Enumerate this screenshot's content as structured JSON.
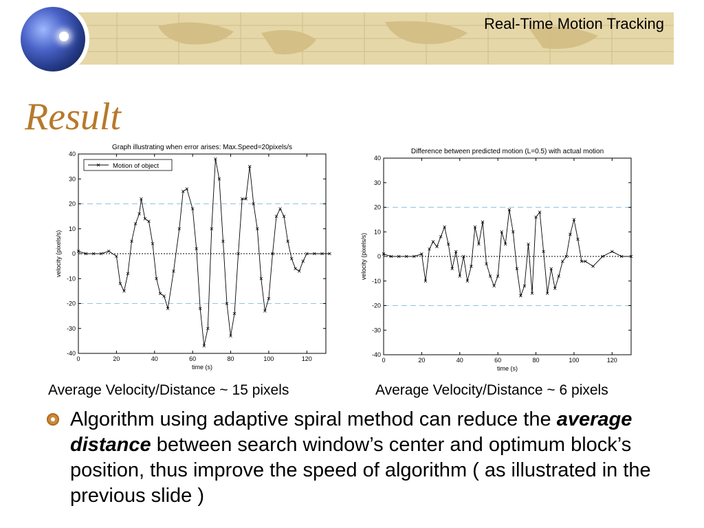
{
  "header": {
    "title": "Real-Time Motion Tracking"
  },
  "slide": {
    "title": "Result",
    "captions": [
      "Average Velocity/Distance ~ 15 pixels",
      "Average Velocity/Distance ~ 6 pixels"
    ],
    "bullet": {
      "part1": "Algorithm using adaptive spiral method can reduce the ",
      "emphasis": "average distance",
      "part2": " between search window’s center and optimum block’s position, thus improve the speed of algorithm ( as illustrated in the previous slide )"
    }
  },
  "chart_data": [
    {
      "type": "line",
      "title": "Graph illustrating when error arises: Max.Speed=20pixels/s",
      "xlabel": "time (s)",
      "ylabel": "velocity (pixels/s)",
      "xlim": [
        0,
        130
      ],
      "ylim": [
        -40,
        40
      ],
      "xticks": [
        0,
        20,
        40,
        60,
        80,
        100,
        120
      ],
      "yticks": [
        -40,
        -30,
        -20,
        -10,
        0,
        10,
        20,
        30,
        40
      ],
      "legend": {
        "position": "top-left",
        "entries": [
          "Motion of object"
        ]
      },
      "reference_lines": [
        20,
        -20,
        0
      ],
      "series": [
        {
          "name": "Motion of object",
          "x": [
            0,
            4,
            8,
            12,
            16,
            20,
            22,
            24,
            26,
            28,
            30,
            32,
            33,
            35,
            37,
            39,
            41,
            43,
            45,
            47,
            50,
            53,
            55,
            57,
            60,
            62,
            64,
            66,
            68,
            70,
            72,
            74,
            76,
            78,
            80,
            82,
            84,
            86,
            88,
            90,
            92,
            94,
            96,
            98,
            100,
            102,
            104,
            106,
            108,
            110,
            112,
            114,
            116,
            118,
            120,
            124,
            128,
            132
          ],
          "y": [
            1,
            0,
            0,
            0,
            1,
            -1,
            -12,
            -15,
            -8,
            5,
            12,
            16,
            22,
            14,
            13,
            4,
            -10,
            -16,
            -17,
            -22,
            -7,
            10,
            25,
            26,
            18,
            2,
            -22,
            -37,
            -30,
            10,
            38,
            30,
            5,
            -20,
            -33,
            -24,
            0,
            22,
            22,
            35,
            20,
            10,
            -10,
            -23,
            -18,
            0,
            15,
            18,
            15,
            5,
            -2,
            -6,
            -7,
            -3,
            0,
            0,
            0,
            0
          ]
        }
      ]
    },
    {
      "type": "line",
      "title": "Difference between predicted motion (L=0.5) with actual motion",
      "xlabel": "time (s)",
      "ylabel": "velocity (pixels/s)",
      "xlim": [
        0,
        130
      ],
      "ylim": [
        -40,
        40
      ],
      "xticks": [
        0,
        20,
        40,
        60,
        80,
        100,
        120
      ],
      "yticks": [
        -40,
        -30,
        -20,
        -10,
        0,
        10,
        20,
        30,
        40
      ],
      "reference_lines": [
        20,
        -20,
        0
      ],
      "series": [
        {
          "name": "Difference",
          "x": [
            0,
            4,
            8,
            12,
            16,
            20,
            22,
            24,
            26,
            28,
            30,
            32,
            34,
            36,
            38,
            40,
            42,
            44,
            46,
            48,
            50,
            52,
            54,
            56,
            58,
            60,
            62,
            64,
            66,
            68,
            70,
            72,
            74,
            76,
            78,
            80,
            82,
            84,
            86,
            88,
            90,
            92,
            94,
            96,
            98,
            100,
            102,
            104,
            106,
            110,
            115,
            120,
            125,
            130
          ],
          "y": [
            1,
            0,
            0,
            0,
            0,
            1,
            -10,
            3,
            6,
            4,
            8,
            12,
            5,
            -5,
            2,
            -8,
            0,
            -10,
            -4,
            12,
            5,
            14,
            -3,
            -8,
            -12,
            -8,
            10,
            5,
            19,
            10,
            -5,
            -16,
            -12,
            5,
            -15,
            16,
            18,
            2,
            -15,
            -5,
            -13,
            -8,
            -2,
            0,
            9,
            15,
            7,
            -2,
            -2,
            -4,
            0,
            2,
            0,
            0
          ]
        }
      ]
    }
  ]
}
